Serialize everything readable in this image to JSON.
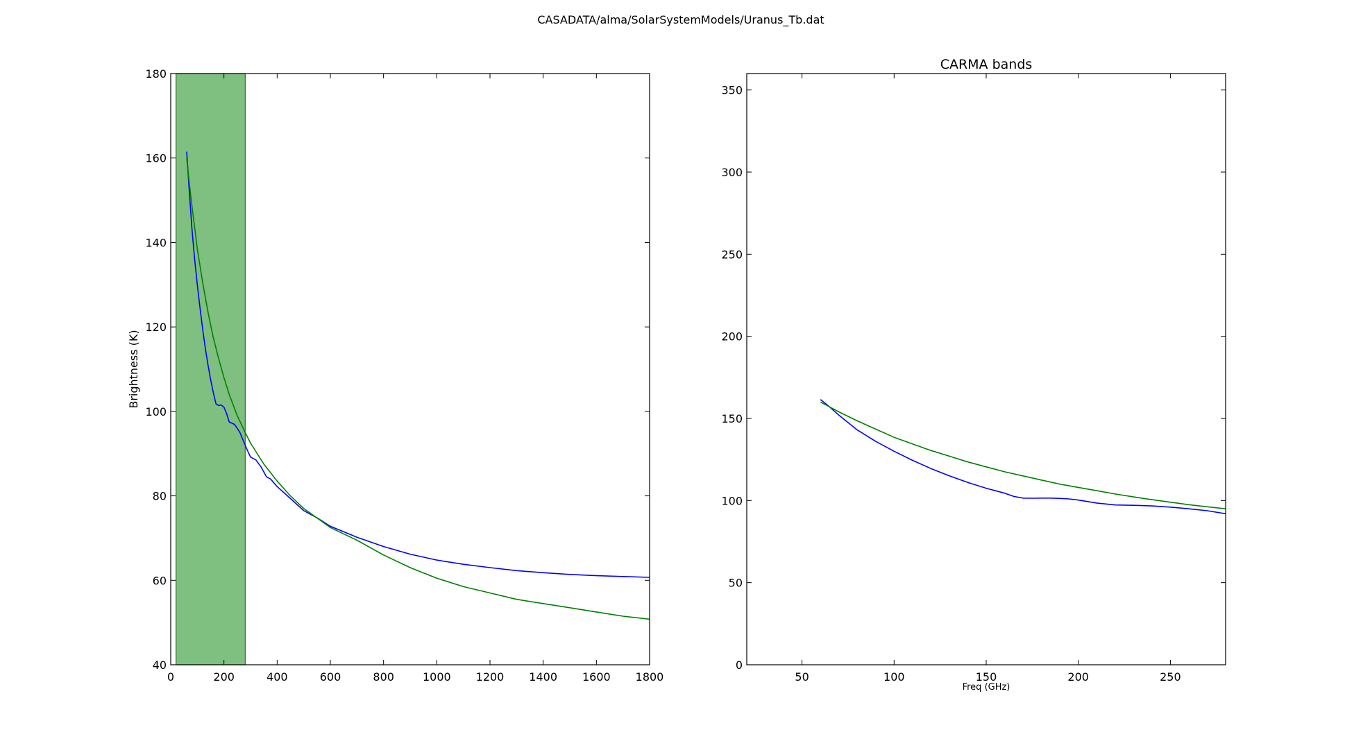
{
  "figure": {
    "suptitle": "CASADATA/alma/SolarSystemModels/Uranus_Tb.dat"
  },
  "colors": {
    "model": "#0000ff",
    "fit": "#008000",
    "band_fill": "#7fbf7f",
    "band_edge": "#2e6b2e"
  },
  "chart_data": [
    {
      "type": "line",
      "title": "",
      "xlabel": "",
      "ylabel": "Brightness (K)",
      "xlim": [
        0,
        1800
      ],
      "ylim": [
        40,
        180
      ],
      "xticks": [
        0,
        200,
        400,
        600,
        800,
        1000,
        1200,
        1400,
        1600,
        1800
      ],
      "yticks": [
        40,
        60,
        80,
        100,
        120,
        140,
        160,
        180
      ],
      "shaded_band": {
        "x_start": 20,
        "x_end": 280
      },
      "series": [
        {
          "color": "#0000ff",
          "x": [
            60,
            70,
            80,
            90,
            100,
            110,
            120,
            130,
            140,
            150,
            160,
            170,
            180,
            190,
            200,
            210,
            220,
            230,
            240,
            250,
            260,
            270,
            280,
            290,
            300,
            320,
            340,
            360,
            375,
            400,
            430,
            460,
            500,
            550,
            600,
            650,
            700,
            800,
            900,
            1000,
            1100,
            1200,
            1300,
            1400,
            1500,
            1600,
            1700,
            1800
          ],
          "y": [
            161.5,
            152,
            143,
            136,
            130,
            124.5,
            119.5,
            115,
            111,
            107.5,
            104.5,
            101.8,
            101.4,
            101.5,
            101,
            99.5,
            97.5,
            97.2,
            96.9,
            96,
            95,
            93.5,
            92,
            90.5,
            89.2,
            88.5,
            86.8,
            84.5,
            84,
            82.2,
            80.5,
            78.8,
            76.5,
            74.8,
            72.8,
            71.5,
            70.2,
            68,
            66.2,
            64.8,
            63.8,
            63,
            62.3,
            61.8,
            61.4,
            61.1,
            60.9,
            60.7
          ]
        },
        {
          "color": "#008000",
          "x": [
            60,
            70,
            80,
            90,
            100,
            120,
            140,
            160,
            180,
            200,
            220,
            250,
            280,
            300,
            350,
            400,
            450,
            500,
            600,
            700,
            800,
            900,
            1000,
            1100,
            1200,
            1300,
            1400,
            1500,
            1600,
            1700,
            1800
          ],
          "y": [
            160,
            154,
            148.5,
            143.5,
            138.5,
            130.5,
            123.5,
            117.5,
            112.5,
            108,
            104,
            99,
            95,
            92.5,
            87.5,
            83.5,
            80,
            77,
            72.5,
            69.5,
            66,
            63,
            60.5,
            58.5,
            57,
            55.5,
            54.5,
            53.5,
            52.5,
            51.5,
            50.8
          ]
        }
      ]
    },
    {
      "type": "line",
      "title": "CARMA bands",
      "xlabel": "Freq (GHz)",
      "ylabel": "",
      "xlim": [
        20,
        280
      ],
      "ylim": [
        0,
        360
      ],
      "xticks": [
        50,
        100,
        150,
        200,
        250
      ],
      "yticks": [
        0,
        50,
        100,
        150,
        200,
        250,
        300,
        350
      ],
      "series": [
        {
          "color": "#0000ff",
          "x": [
            60,
            65,
            70,
            80,
            90,
            100,
            110,
            120,
            130,
            140,
            150,
            160,
            165,
            170,
            175,
            180,
            185,
            190,
            195,
            200,
            210,
            220,
            230,
            240,
            250,
            260,
            270,
            280
          ],
          "y": [
            161.5,
            157,
            152,
            143,
            136,
            130,
            124.5,
            119.5,
            115,
            111,
            107.5,
            104.5,
            102.5,
            101.5,
            101.4,
            101.5,
            101.5,
            101.3,
            101,
            100.3,
            98.5,
            97.3,
            97.1,
            96.7,
            96,
            95,
            93.8,
            92
          ]
        },
        {
          "color": "#008000",
          "x": [
            60,
            70,
            80,
            90,
            100,
            110,
            120,
            130,
            140,
            150,
            160,
            170,
            180,
            190,
            200,
            210,
            220,
            230,
            240,
            250,
            260,
            270,
            280
          ],
          "y": [
            160,
            154,
            148.5,
            143.5,
            138.5,
            134.5,
            130.5,
            127,
            123.5,
            120.5,
            117.5,
            115,
            112.5,
            110,
            108,
            106,
            104,
            102.2,
            100.5,
            99,
            97.5,
            96.2,
            95
          ]
        }
      ]
    }
  ]
}
